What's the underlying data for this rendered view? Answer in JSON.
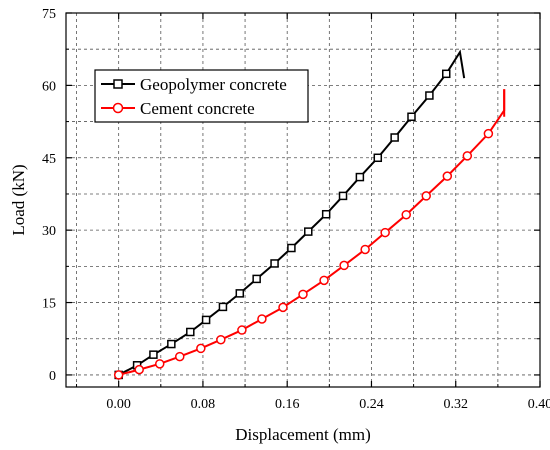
{
  "chart_data": {
    "type": "line",
    "title": "",
    "xlabel": "Displacement (mm)",
    "ylabel": "Load (kN)",
    "xlim": [
      -0.05,
      0.4
    ],
    "ylim": [
      -2.5,
      75
    ],
    "xticks": [
      "0.00",
      "0.08",
      "0.16",
      "0.24",
      "0.32",
      "0.40"
    ],
    "yticks": [
      "0",
      "15",
      "30",
      "45",
      "60",
      "75"
    ],
    "grid": true,
    "legend_position": "top-left",
    "series": [
      {
        "name": "Geopolymer concrete",
        "color": "#000000",
        "marker": "square",
        "x": [
          0.0,
          0.0175,
          0.033,
          0.05,
          0.068,
          0.083,
          0.099,
          0.115,
          0.131,
          0.148,
          0.164,
          0.18,
          0.197,
          0.213,
          0.229,
          0.246,
          0.262,
          0.278,
          0.295,
          0.311,
          0.324,
          0.328
        ],
        "y": [
          0.0,
          2.0,
          4.2,
          6.4,
          8.9,
          11.4,
          14.1,
          16.9,
          19.9,
          23.1,
          26.3,
          29.7,
          33.3,
          37.1,
          41.0,
          45.0,
          49.2,
          53.5,
          57.9,
          62.4,
          66.9,
          61.5
        ],
        "markers_x": [
          0.0,
          0.0175,
          0.033,
          0.05,
          0.068,
          0.083,
          0.099,
          0.115,
          0.131,
          0.148,
          0.164,
          0.18,
          0.197,
          0.213,
          0.229,
          0.246,
          0.262,
          0.278,
          0.295,
          0.311
        ],
        "markers_y": [
          0.0,
          2.0,
          4.2,
          6.4,
          8.9,
          11.4,
          14.1,
          16.9,
          19.9,
          23.1,
          26.3,
          29.7,
          33.3,
          37.1,
          41.0,
          45.0,
          49.2,
          53.5,
          57.9,
          62.4
        ]
      },
      {
        "name": "Cement concrete",
        "color": "#ff0000",
        "marker": "circle",
        "x": [
          0.0,
          0.0195,
          0.039,
          0.058,
          0.078,
          0.097,
          0.117,
          0.136,
          0.156,
          0.175,
          0.195,
          0.214,
          0.234,
          0.253,
          0.273,
          0.292,
          0.312,
          0.331,
          0.351,
          0.366,
          0.366
        ],
        "y": [
          0.0,
          1.1,
          2.3,
          3.8,
          5.5,
          7.3,
          9.3,
          11.6,
          14.0,
          16.7,
          19.6,
          22.7,
          26.0,
          29.5,
          33.2,
          37.1,
          41.2,
          45.4,
          50.0,
          54.8,
          59.2
        ],
        "markers_x": [
          0.0,
          0.0195,
          0.039,
          0.058,
          0.078,
          0.097,
          0.117,
          0.136,
          0.156,
          0.175,
          0.195,
          0.214,
          0.234,
          0.253,
          0.273,
          0.292,
          0.312,
          0.331,
          0.351
        ],
        "markers_y": [
          0.0,
          1.1,
          2.3,
          3.8,
          5.5,
          7.3,
          9.3,
          11.6,
          14.0,
          16.7,
          19.6,
          22.7,
          26.0,
          29.5,
          33.2,
          37.1,
          41.2,
          45.4,
          50.0
        ],
        "tail_x": [
          0.366,
          0.366
        ],
        "tail_y": [
          59.2,
          53.5
        ]
      }
    ]
  }
}
